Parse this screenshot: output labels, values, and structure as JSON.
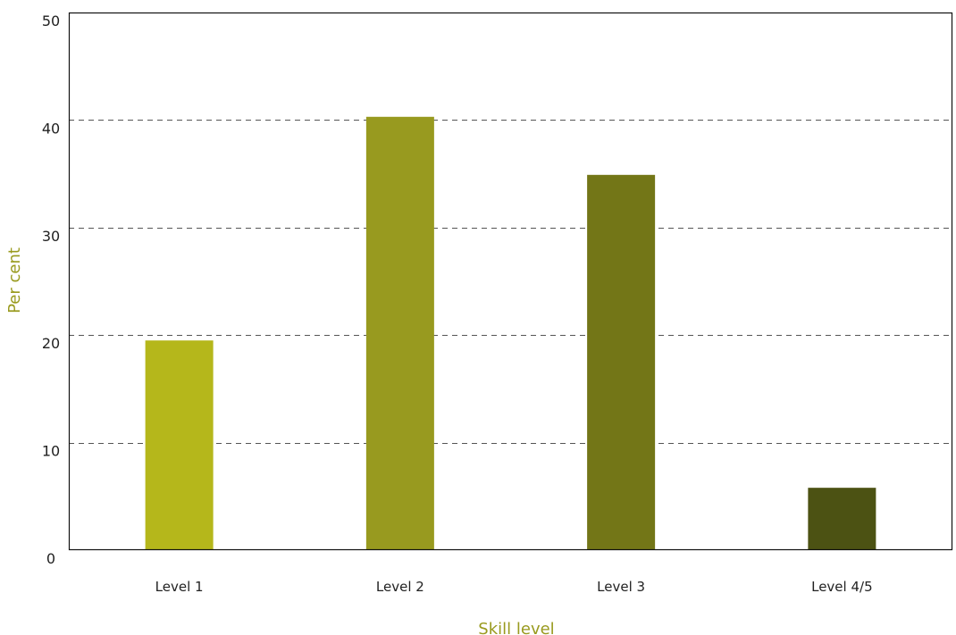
{
  "chart_data": {
    "type": "bar",
    "categories": [
      "Level 1",
      "Level 2",
      "Level 3",
      "Level 4/5"
    ],
    "values": [
      19.5,
      40.3,
      34.9,
      5.8
    ],
    "bar_colors": [
      "#b5b71b",
      "#989a1f",
      "#737617",
      "#4c5213"
    ],
    "title": "",
    "xlabel": "Skill level",
    "ylabel": "Per cent",
    "label_color": "#999a1e",
    "ylim": [
      0,
      50
    ],
    "yticks": [
      0,
      10,
      20,
      30,
      40,
      50
    ],
    "grid": true,
    "grid_style": "dashed"
  }
}
